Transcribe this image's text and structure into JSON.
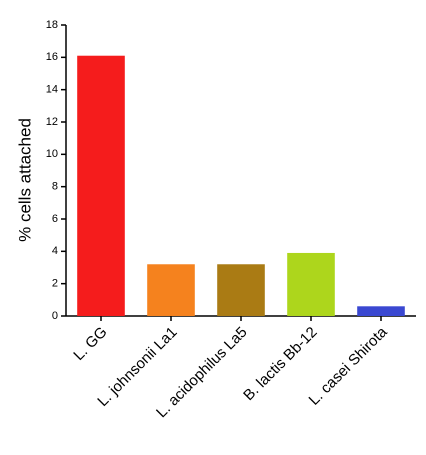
{
  "chart_data": {
    "type": "bar",
    "y_label": "% cells attached",
    "categories": [
      "L. GG",
      "L. johnsonii La1",
      "L. acidophilus La5",
      "B. lactis Bb-12",
      "L. casei Shirota"
    ],
    "values": [
      16.1,
      3.2,
      3.2,
      3.9,
      0.6
    ],
    "colors": [
      "#f51c1c",
      "#f5821e",
      "#aa7b14",
      "#add61c",
      "#3a48d1"
    ],
    "ylim": [
      0,
      18
    ],
    "yticks": [
      0,
      2,
      4,
      6,
      8,
      10,
      12,
      14,
      16,
      18
    ],
    "grid": false
  }
}
